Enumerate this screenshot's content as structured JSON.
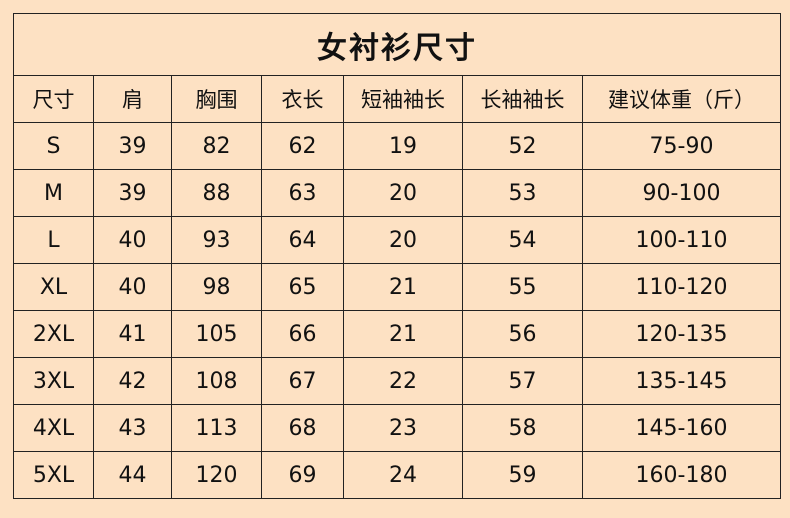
{
  "title": "女衬衫尺寸",
  "headers": [
    "尺寸",
    "肩",
    "胸围",
    "衣长",
    "短袖袖长",
    "长袖袖长",
    "建议体重（斤）"
  ],
  "rows": [
    [
      "S",
      "39",
      "82",
      "62",
      "19",
      "52",
      "75-90"
    ],
    [
      "M",
      "39",
      "88",
      "63",
      "20",
      "53",
      "90-100"
    ],
    [
      "L",
      "40",
      "93",
      "64",
      "20",
      "54",
      "100-110"
    ],
    [
      "XL",
      "40",
      "98",
      "65",
      "21",
      "55",
      "110-120"
    ],
    [
      "2XL",
      "41",
      "105",
      "66",
      "21",
      "56",
      "120-135"
    ],
    [
      "3XL",
      "42",
      "108",
      "67",
      "22",
      "57",
      "135-145"
    ],
    [
      "4XL",
      "43",
      "113",
      "68",
      "23",
      "58",
      "145-160"
    ],
    [
      "5XL",
      "44",
      "120",
      "69",
      "24",
      "59",
      "160-180"
    ]
  ],
  "colors": {
    "background": "#fde1c3",
    "border": "#222222"
  }
}
